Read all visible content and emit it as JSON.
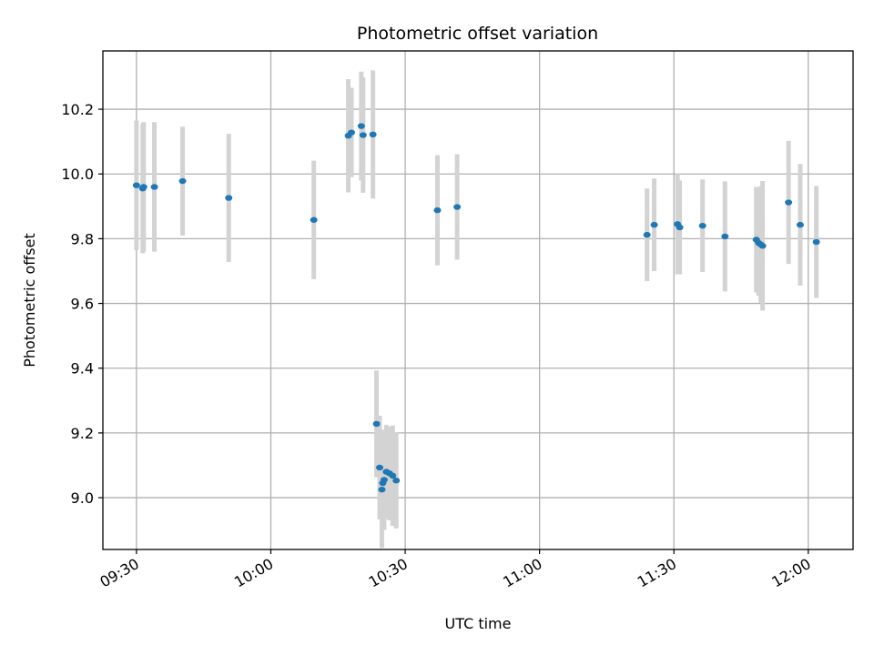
{
  "chart_data": {
    "type": "scatter",
    "title": "Photometric offset variation",
    "xlabel": "UTC time",
    "ylabel": "Photometric offset",
    "x_unit": "UTC time (HH:MM)",
    "xlim": [
      "09:22.5",
      "12:10"
    ],
    "ylim": [
      8.84,
      10.38
    ],
    "grid": true,
    "x_ticks": [
      "09:30",
      "10:00",
      "10:30",
      "11:00",
      "11:30",
      "12:00"
    ],
    "y_ticks": [
      9.0,
      9.2,
      9.4,
      9.6,
      9.8,
      10.0,
      10.2
    ],
    "y_tick_labels": [
      "9.0",
      "9.2",
      "9.4",
      "9.6",
      "9.8",
      "10.0",
      "10.2"
    ],
    "colors": {
      "point": "#1f77b4",
      "errorbar": "#d3d3d3",
      "grid": "#b0b0b0"
    },
    "series": [
      {
        "points": [
          {
            "x": "09:30.0",
            "y": 9.965,
            "err": 0.2
          },
          {
            "x": "09:31.4",
            "y": 9.955,
            "err": 0.2
          },
          {
            "x": "09:31.6",
            "y": 9.96,
            "err": 0.2
          },
          {
            "x": "09:34.0",
            "y": 9.96,
            "err": 0.2
          },
          {
            "x": "09:40.3",
            "y": 9.978,
            "err": 0.168
          },
          {
            "x": "09:50.6",
            "y": 9.926,
            "err": 0.198
          },
          {
            "x": "10:09.6",
            "y": 9.858,
            "err": 0.183
          },
          {
            "x": "10:17.3",
            "y": 10.118,
            "err": 0.175
          },
          {
            "x": "10:18.0",
            "y": 10.128,
            "err": 0.138
          },
          {
            "x": "10:20.2",
            "y": 10.148,
            "err": 0.168
          },
          {
            "x": "10:20.6",
            "y": 10.12,
            "err": 0.178
          },
          {
            "x": "10:22.8",
            "y": 10.122,
            "err": 0.198
          },
          {
            "x": "10:23.6",
            "y": 9.228,
            "err": 0.165
          },
          {
            "x": "10:24.3",
            "y": 9.093,
            "err": 0.16
          },
          {
            "x": "10:24.8",
            "y": 9.025,
            "err": 0.18
          },
          {
            "x": "10:25.0",
            "y": 9.045,
            "err": 0.14
          },
          {
            "x": "10:25.3",
            "y": 9.055,
            "err": 0.155
          },
          {
            "x": "10:25.8",
            "y": 9.08,
            "err": 0.145
          },
          {
            "x": "10:26.5",
            "y": 9.075,
            "err": 0.145
          },
          {
            "x": "10:27.2",
            "y": 9.068,
            "err": 0.155
          },
          {
            "x": "10:28.0",
            "y": 9.053,
            "err": 0.148
          },
          {
            "x": "10:37.2",
            "y": 9.888,
            "err": 0.17
          },
          {
            "x": "10:41.6",
            "y": 9.898,
            "err": 0.163
          },
          {
            "x": "11:24.0",
            "y": 9.812,
            "err": 0.143
          },
          {
            "x": "11:25.6",
            "y": 9.843,
            "err": 0.143
          },
          {
            "x": "11:30.8",
            "y": 9.845,
            "err": 0.155
          },
          {
            "x": "11:31.3",
            "y": 9.835,
            "err": 0.145
          },
          {
            "x": "11:36.4",
            "y": 9.84,
            "err": 0.143
          },
          {
            "x": "11:41.4",
            "y": 9.807,
            "err": 0.17
          },
          {
            "x": "11:48.4",
            "y": 9.797,
            "err": 0.163
          },
          {
            "x": "11:48.9",
            "y": 9.787,
            "err": 0.163
          },
          {
            "x": "11:49.4",
            "y": 9.782,
            "err": 0.18
          },
          {
            "x": "11:49.8",
            "y": 9.778,
            "err": 0.2
          },
          {
            "x": "11:55.6",
            "y": 9.912,
            "err": 0.19
          },
          {
            "x": "11:58.2",
            "y": 9.843,
            "err": 0.188
          },
          {
            "x": "12:01.8",
            "y": 9.79,
            "err": 0.173
          }
        ]
      }
    ]
  }
}
